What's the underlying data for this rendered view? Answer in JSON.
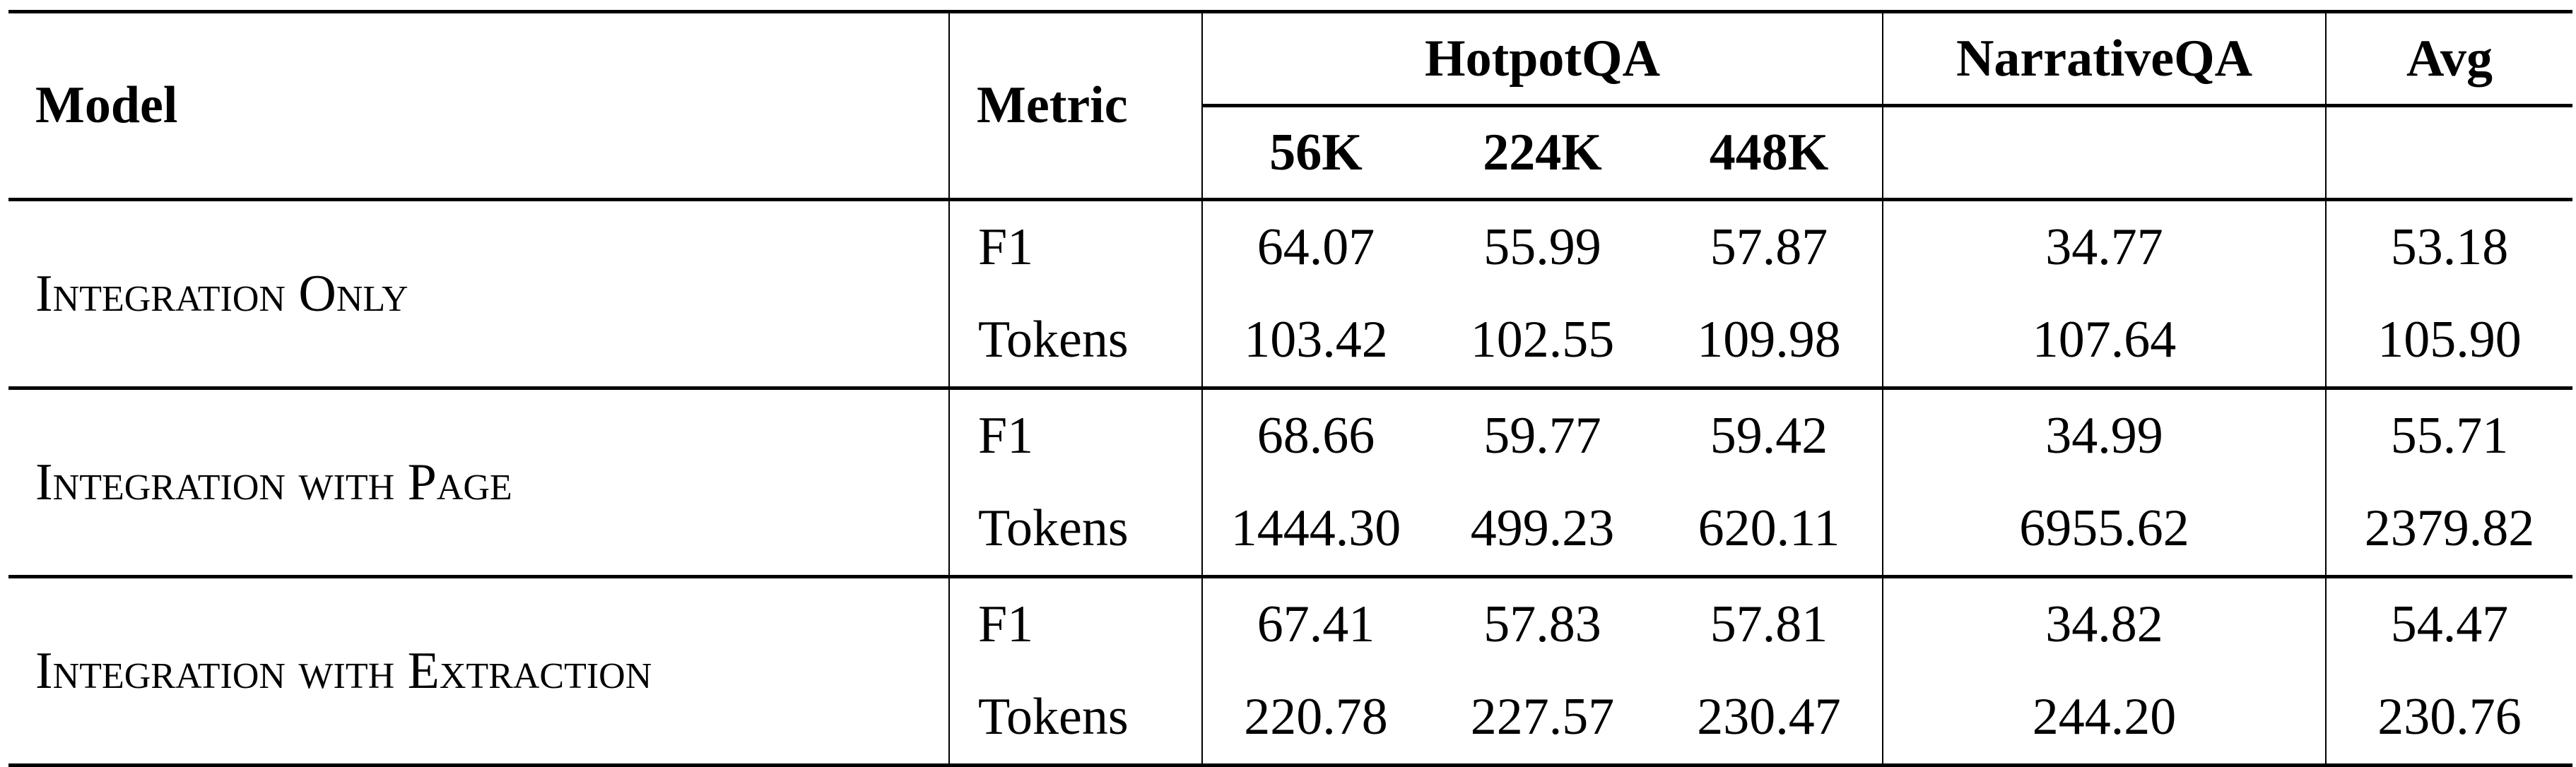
{
  "header": {
    "model": "Model",
    "metric": "Metric",
    "hotpotqa": "HotpotQA",
    "hotpot_sub": [
      "56K",
      "224K",
      "448K"
    ],
    "narrativeqa": "NarrativeQA",
    "avg": "Avg"
  },
  "rows": [
    {
      "model": "Integration Only",
      "f1": {
        "label": "F1",
        "values": [
          "64.07",
          "55.99",
          "57.87",
          "34.77",
          "53.18"
        ]
      },
      "tokens": {
        "label": "Tokens",
        "values": [
          "103.42",
          "102.55",
          "109.98",
          "107.64",
          "105.90"
        ]
      }
    },
    {
      "model": "Integration with Page",
      "f1": {
        "label": "F1",
        "values": [
          "68.66",
          "59.77",
          "59.42",
          "34.99",
          "55.71"
        ]
      },
      "tokens": {
        "label": "Tokens",
        "values": [
          "1444.30",
          "499.23",
          "620.11",
          "6955.62",
          "2379.82"
        ]
      }
    },
    {
      "model": "Integration with Extraction",
      "f1": {
        "label": "F1",
        "values": [
          "67.41",
          "57.83",
          "57.81",
          "34.82",
          "54.47"
        ]
      },
      "tokens": {
        "label": "Tokens",
        "values": [
          "220.78",
          "227.57",
          "230.47",
          "244.20",
          "230.76"
        ]
      }
    }
  ]
}
